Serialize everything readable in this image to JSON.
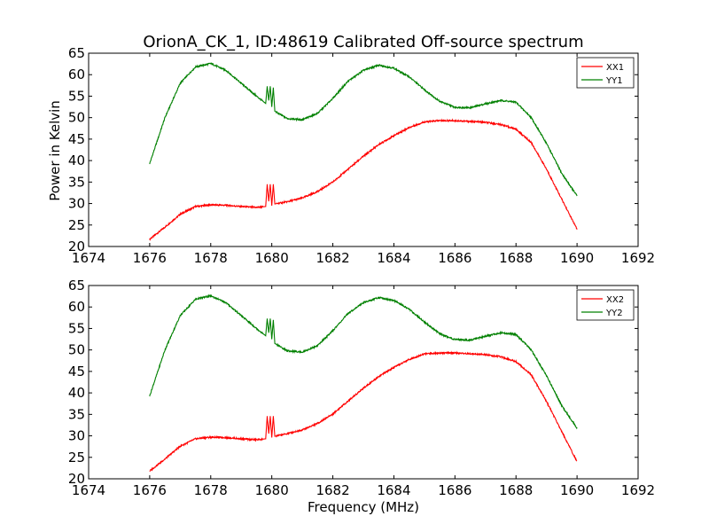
{
  "figure": {
    "title": "OrionA_CK_1, ID:48619 Calibrated Off-source spectrum",
    "shared_ylabel": "Power in Kelvin",
    "shared_xlabel": "Frequency (MHz)"
  },
  "colors": {
    "red": "#ff0000",
    "green": "#008000"
  },
  "chart_data": [
    {
      "type": "line",
      "title": "OrionA_CK_1, ID:48619 Calibrated Off-source spectrum",
      "xlabel": "",
      "ylabel": "Power in Kelvin",
      "xlim": [
        1674,
        1692
      ],
      "ylim": [
        20,
        65
      ],
      "xticks": [
        "1674",
        "1676",
        "1678",
        "1680",
        "1682",
        "1684",
        "1686",
        "1688",
        "1690",
        "1692"
      ],
      "yticks": [
        "20",
        "25",
        "30",
        "35",
        "40",
        "45",
        "50",
        "55",
        "60",
        "65"
      ],
      "legend": "top-right",
      "grid": false,
      "series": [
        {
          "name": "XX1",
          "color": "#ff0000",
          "x": [
            1676.0,
            1676.5,
            1677.0,
            1677.5,
            1678.0,
            1678.5,
            1679.0,
            1679.5,
            1679.8,
            1679.85,
            1679.9,
            1679.95,
            1680.0,
            1680.05,
            1680.1,
            1680.5,
            1681.0,
            1681.5,
            1682.0,
            1682.5,
            1683.0,
            1683.5,
            1684.0,
            1684.5,
            1685.0,
            1685.5,
            1686.0,
            1686.5,
            1687.0,
            1687.5,
            1688.0,
            1688.5,
            1689.0,
            1689.5,
            1690.0
          ],
          "y": [
            21.7,
            24.5,
            27.5,
            29.3,
            29.7,
            29.6,
            29.3,
            29.1,
            29.3,
            34.5,
            30.5,
            34.5,
            29.5,
            34.5,
            29.9,
            30.4,
            31.3,
            32.8,
            35.0,
            38.0,
            41.0,
            43.7,
            45.8,
            47.7,
            49.0,
            49.3,
            49.3,
            49.1,
            48.9,
            48.4,
            47.3,
            44.2,
            38.0,
            31.0,
            24.0
          ]
        },
        {
          "name": "YY1",
          "color": "#008000",
          "x": [
            1676.0,
            1676.5,
            1677.0,
            1677.5,
            1678.0,
            1678.5,
            1679.0,
            1679.5,
            1679.8,
            1679.85,
            1679.9,
            1679.95,
            1680.0,
            1680.05,
            1680.1,
            1680.5,
            1681.0,
            1681.5,
            1682.0,
            1682.5,
            1683.0,
            1683.5,
            1684.0,
            1684.5,
            1685.0,
            1685.5,
            1686.0,
            1686.5,
            1687.0,
            1687.5,
            1688.0,
            1688.5,
            1689.0,
            1689.5,
            1690.0
          ],
          "y": [
            39.3,
            50.0,
            58.0,
            61.8,
            62.6,
            61.0,
            58.0,
            55.0,
            53.3,
            57.3,
            54.0,
            57.3,
            52.5,
            57.0,
            51.5,
            49.8,
            49.5,
            51.0,
            54.5,
            58.5,
            61.0,
            62.2,
            61.5,
            59.5,
            56.5,
            53.8,
            52.4,
            52.3,
            53.2,
            54.0,
            53.6,
            50.0,
            44.0,
            37.0,
            31.8
          ]
        }
      ]
    },
    {
      "type": "line",
      "title": "",
      "xlabel": "Frequency (MHz)",
      "ylabel": "",
      "xlim": [
        1674,
        1692
      ],
      "ylim": [
        20,
        65
      ],
      "xticks": [
        "1674",
        "1676",
        "1678",
        "1680",
        "1682",
        "1684",
        "1686",
        "1688",
        "1690",
        "1692"
      ],
      "yticks": [
        "20",
        "25",
        "30",
        "35",
        "40",
        "45",
        "50",
        "55",
        "60",
        "65"
      ],
      "legend": "top-right",
      "grid": false,
      "series": [
        {
          "name": "XX2",
          "color": "#ff0000",
          "x": [
            1676.0,
            1676.5,
            1677.0,
            1677.5,
            1678.0,
            1678.5,
            1679.0,
            1679.5,
            1679.8,
            1679.85,
            1679.9,
            1679.95,
            1680.0,
            1680.05,
            1680.1,
            1680.5,
            1681.0,
            1681.5,
            1682.0,
            1682.5,
            1683.0,
            1683.5,
            1684.0,
            1684.5,
            1685.0,
            1685.5,
            1686.0,
            1686.5,
            1687.0,
            1687.5,
            1688.0,
            1688.5,
            1689.0,
            1689.5,
            1690.0
          ],
          "y": [
            21.8,
            24.6,
            27.6,
            29.3,
            29.7,
            29.6,
            29.3,
            29.1,
            29.3,
            34.6,
            30.5,
            34.6,
            29.6,
            34.6,
            29.9,
            30.5,
            31.4,
            32.9,
            35.1,
            38.1,
            41.1,
            43.8,
            45.9,
            47.8,
            49.1,
            49.3,
            49.3,
            49.1,
            48.9,
            48.4,
            47.3,
            44.2,
            38.0,
            31.0,
            24.0
          ]
        },
        {
          "name": "YY2",
          "color": "#008000",
          "x": [
            1676.0,
            1676.5,
            1677.0,
            1677.5,
            1678.0,
            1678.5,
            1679.0,
            1679.5,
            1679.8,
            1679.85,
            1679.9,
            1679.95,
            1680.0,
            1680.05,
            1680.1,
            1680.5,
            1681.0,
            1681.5,
            1682.0,
            1682.5,
            1683.0,
            1683.5,
            1684.0,
            1684.5,
            1685.0,
            1685.5,
            1686.0,
            1686.5,
            1687.0,
            1687.5,
            1688.0,
            1688.5,
            1689.0,
            1689.5,
            1690.0
          ],
          "y": [
            39.3,
            50.0,
            58.0,
            61.8,
            62.6,
            61.0,
            58.0,
            55.0,
            53.3,
            57.3,
            54.0,
            57.3,
            52.5,
            57.0,
            51.5,
            49.8,
            49.5,
            51.0,
            54.5,
            58.5,
            61.0,
            62.2,
            61.5,
            59.5,
            56.5,
            53.8,
            52.4,
            52.3,
            53.2,
            54.0,
            53.6,
            50.0,
            44.0,
            37.0,
            31.8
          ]
        }
      ]
    }
  ]
}
